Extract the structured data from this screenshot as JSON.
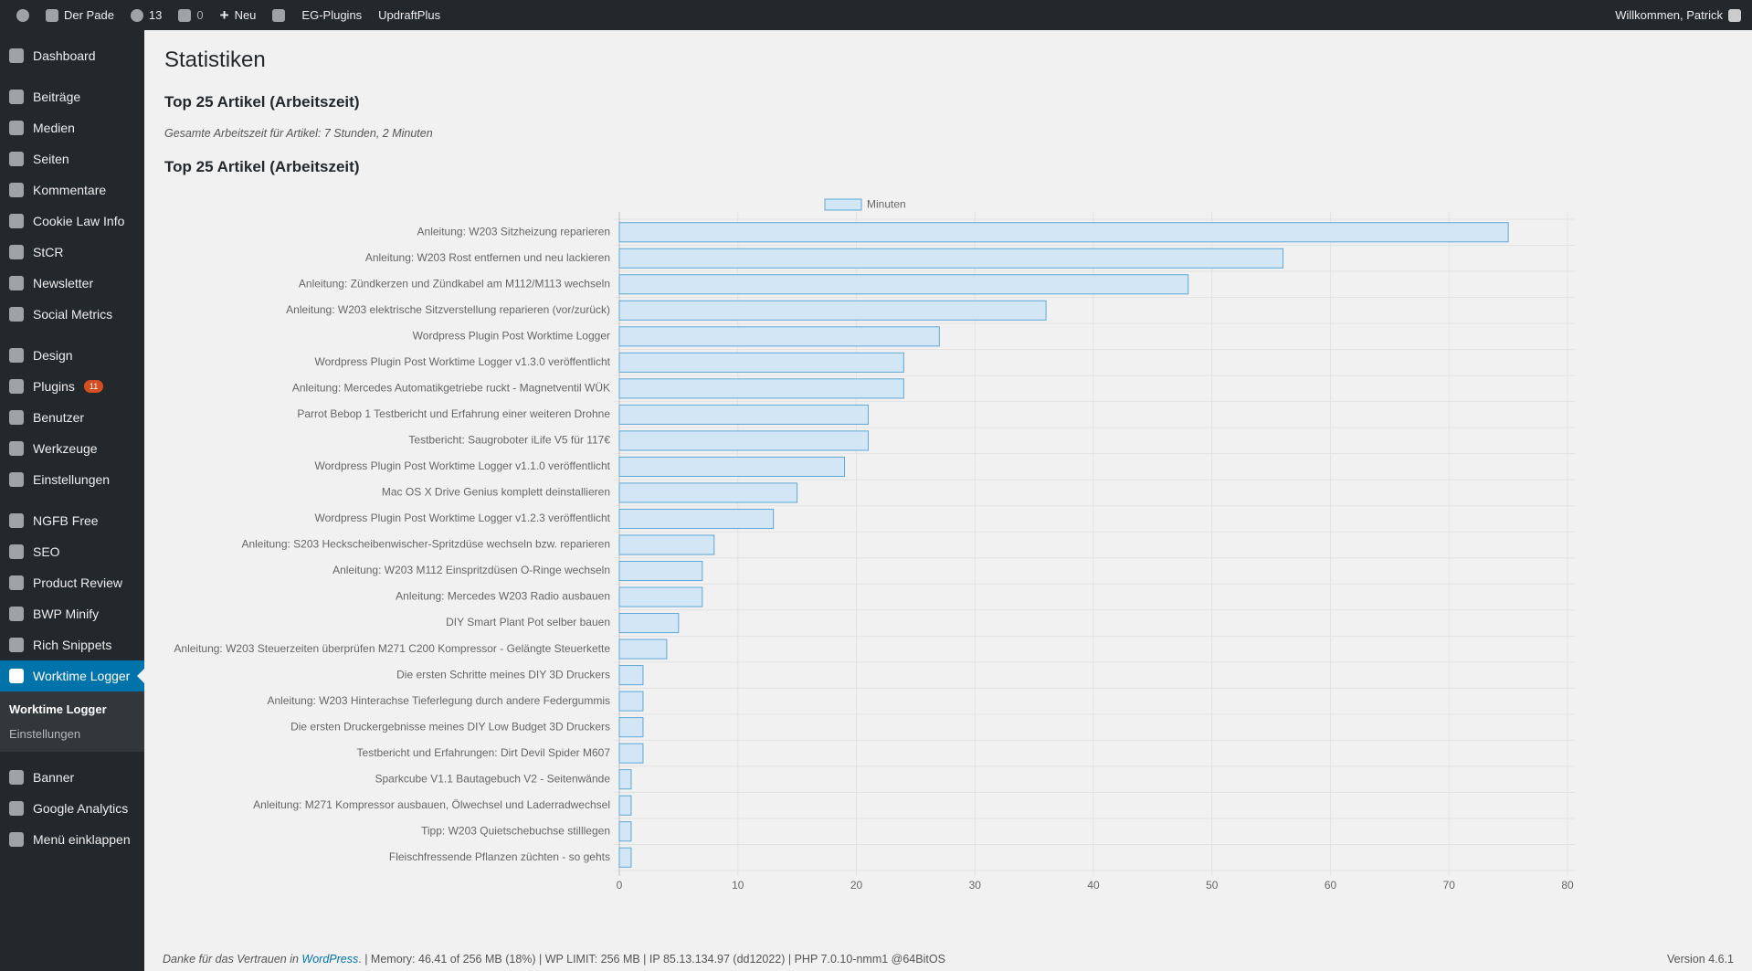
{
  "admin_bar": {
    "site": "Der Pade",
    "updates": "13",
    "comments": "0",
    "new": "Neu",
    "items": [
      "EG-Plugins",
      "UpdraftPlus"
    ],
    "welcome": "Willkommen, Patrick"
  },
  "menu": [
    [
      {
        "label": "Dashboard"
      }
    ],
    [
      {
        "label": "Beiträge"
      },
      {
        "label": "Medien"
      },
      {
        "label": "Seiten"
      },
      {
        "label": "Kommentare"
      },
      {
        "label": "Cookie Law Info"
      },
      {
        "label": "StCR"
      },
      {
        "label": "Newsletter"
      },
      {
        "label": "Social Metrics"
      }
    ],
    [
      {
        "label": "Design"
      },
      {
        "label": "Plugins",
        "badge": "11"
      },
      {
        "label": "Benutzer"
      },
      {
        "label": "Werkzeuge"
      },
      {
        "label": "Einstellungen"
      }
    ],
    [
      {
        "label": "NGFB Free"
      },
      {
        "label": "SEO"
      },
      {
        "label": "Product Review"
      },
      {
        "label": "BWP Minify"
      },
      {
        "label": "Rich Snippets"
      },
      {
        "label": "Worktime Logger",
        "active": true,
        "submenu": [
          "Worktime Logger",
          "Einstellungen"
        ]
      }
    ],
    [
      {
        "label": "Banner"
      },
      {
        "label": "Google Analytics"
      },
      {
        "label": "Menü einklappen"
      }
    ]
  ],
  "page": {
    "title": "Statistiken",
    "heading": "Top 25 Artikel (Arbeitszeit)",
    "note": "Gesamte Arbeitszeit für Artikel: 7 Stunden, 2 Minuten"
  },
  "chart_data": {
    "type": "hbar",
    "title": "Top 25 Artikel (Arbeitszeit)",
    "categories": [
      "Anleitung: W203 Sitzheizung reparieren",
      "Anleitung: W203 Rost entfernen und neu lackieren",
      "Anleitung: Zündkerzen und Zündkabel am M112/M113 wechseln",
      "Anleitung: W203 elektrische Sitzverstellung reparieren (vor/zurück)",
      "Wordpress Plugin Post Worktime Logger",
      "Wordpress Plugin Post Worktime Logger v1.3.0 veröffentlicht",
      "Anleitung: Mercedes Automatikgetriebe ruckt - Magnetventil WÜK",
      "Parrot Bebop 1 Testbericht und Erfahrung einer weiteren Drohne",
      "Testbericht: Saugroboter iLife V5 für 117€",
      "Wordpress Plugin Post Worktime Logger v1.1.0 veröffentlicht",
      "Mac OS X Drive Genius komplett deinstallieren",
      "Wordpress Plugin Post Worktime Logger v1.2.3 veröffentlicht",
      "Anleitung: S203 Heckscheibenwischer-Spritzdüse wechseln bzw. reparieren",
      "Anleitung: W203 M112 Einspritzdüsen O-Ringe wechseln",
      "Anleitung: Mercedes W203 Radio ausbauen",
      "DIY Smart Plant Pot selber bauen",
      "Anleitung: W203 Steuerzeiten überprüfen M271 C200 Kompressor - Gelängte Steuerkette",
      "Die ersten Schritte meines DIY 3D Druckers",
      "Anleitung: W203 Hinterachse Tieferlegung durch andere Federgummis",
      "Die ersten Druckergebnisse meines DIY Low Budget 3D Druckers",
      "Testbericht und Erfahrungen: Dirt Devil Spider M607",
      "Sparkcube V1.1 Bautagebuch V2 - Seitenwände",
      "Anleitung: M271 Kompressor ausbauen, Ölwechsel und Laderradwechsel",
      "Tipp: W203 Quietschebuchse stilllegen",
      "Fleischfressende Pflanzen züchten - so gehts"
    ],
    "series": [
      {
        "name": "Minuten",
        "color": "#d2e6f5",
        "border": "#5ea8d8",
        "values": [
          75,
          56,
          48,
          36,
          27,
          24,
          24,
          21,
          21,
          19,
          15,
          13,
          8,
          7,
          7,
          5,
          4,
          2,
          2,
          2,
          2,
          1,
          1,
          1,
          1
        ]
      }
    ],
    "xlim": [
      0,
      80
    ],
    "xticks": [
      0,
      10,
      20,
      30,
      40,
      50,
      60,
      70,
      80
    ],
    "grid": true,
    "legend": "top"
  },
  "footer": {
    "thanks": "Danke für das Vertrauen in",
    "link": "WordPress",
    "info": ". | Memory: 46.41 of 256 MB (18%) | WP LIMIT: 256 MB | IP 85.13.134.97 (dd12022) | PHP 7.0.10-nmm1 @64BitOS",
    "version": "Version 4.6.1"
  }
}
